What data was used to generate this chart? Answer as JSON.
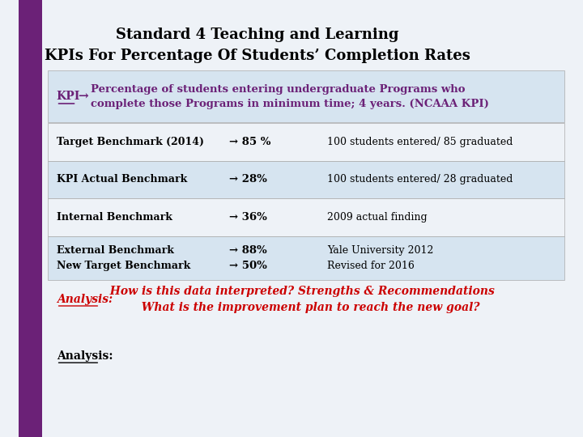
{
  "title_line1": "Standard 4 Teaching and Learning",
  "title_line2": "KPIs For Percentage Of Students’ Completion Rates",
  "kpi_label": "KPI",
  "kpi_arrow": "→",
  "kpi_text": "Percentage of students entering undergraduate Programs who\ncomplete those Programs in minimum time; 4 years. (NCAAA KPI)",
  "rows": [
    {
      "col1": "Target Benchmark (2014)",
      "col2": "→ 85 %",
      "col3": "100 students entered/ 85 graduated",
      "shaded": false
    },
    {
      "col1": "KPI Actual Benchmark",
      "col2": "→ 28%",
      "col3": "100 students entered/ 28 graduated",
      "shaded": true
    },
    {
      "col1": "Internal Benchmark",
      "col2": "→ 36%",
      "col3": "2009 actual finding",
      "shaded": false
    },
    {
      "col1": "External Benchmark\nNew Target Benchmark",
      "col2": "→ 88%\n→ 50%",
      "col3": "Yale University 2012\nRevised for 2016",
      "shaded": true
    }
  ],
  "analysis_label": "Analysis:",
  "analysis_question": "  How is this data interpreted? Strengths & Recommendations\n          What is the improvement plan to reach the new goal?",
  "analysis_footer": "Analysis:",
  "bg_color": "#eef2f7",
  "left_bar_color": "#6b2177",
  "title_color": "#000000",
  "kpi_purple": "#6b2177",
  "row_shaded_color": "#d6e4f0",
  "row_normal_color": "#eef2f7",
  "red_color": "#cc0000",
  "border_color": "#aaaaaa"
}
